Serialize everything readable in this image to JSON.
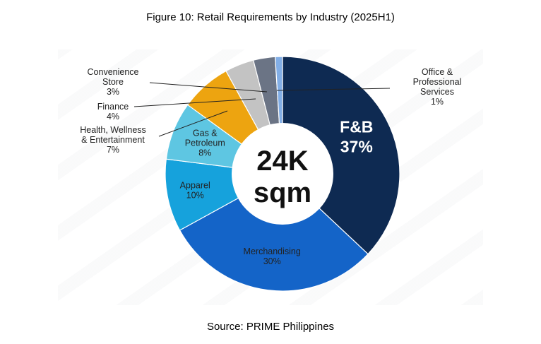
{
  "title": "Figure 10: Retail Requirements by Industry (2025H1)",
  "source": "Source: PRIME Philippines",
  "chart_data": {
    "type": "pie",
    "title": "Figure 10: Retail Requirements by Industry (2025H1)",
    "center_label": [
      "24K",
      "sqm"
    ],
    "slices": [
      {
        "label": [
          "F&B"
        ],
        "pct": "37%",
        "value": 37,
        "color": "#0e2a52",
        "label_style": "big"
      },
      {
        "label": [
          "Merchandising"
        ],
        "pct": "30%",
        "value": 30,
        "color": "#1464c8",
        "label_style": "inside"
      },
      {
        "label": [
          "Apparel"
        ],
        "pct": "10%",
        "value": 10,
        "color": "#16a2dc",
        "label_style": "inside"
      },
      {
        "label": [
          "Gas &",
          "Petroleum"
        ],
        "pct": "8%",
        "value": 8,
        "color": "#5ec6e2",
        "label_style": "inside"
      },
      {
        "label": [
          "Health, Wellness",
          "& Entertainment"
        ],
        "pct": "7%",
        "value": 7,
        "color": "#eda410",
        "label_style": "outside"
      },
      {
        "label": [
          "Finance"
        ],
        "pct": "4%",
        "value": 4,
        "color": "#c3c3c3",
        "label_style": "outside"
      },
      {
        "label": [
          "Convenience",
          "Store"
        ],
        "pct": "3%",
        "value": 3,
        "color": "#6b7485",
        "label_style": "outside"
      },
      {
        "label": [
          "Office &",
          "Professional",
          "Services"
        ],
        "pct": "1%",
        "value": 1,
        "color": "#82aee6",
        "label_style": "outside"
      }
    ]
  }
}
